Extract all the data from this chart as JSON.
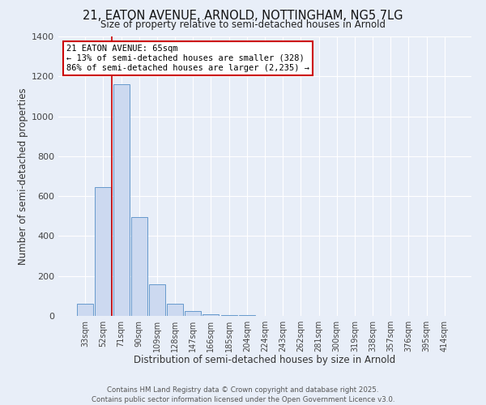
{
  "title_line1": "21, EATON AVENUE, ARNOLD, NOTTINGHAM, NG5 7LG",
  "title_line2": "Size of property relative to semi-detached houses in Arnold",
  "xlabel": "Distribution of semi-detached houses by size in Arnold",
  "ylabel": "Number of semi-detached properties",
  "bar_labels": [
    "33sqm",
    "52sqm",
    "71sqm",
    "90sqm",
    "109sqm",
    "128sqm",
    "147sqm",
    "166sqm",
    "185sqm",
    "204sqm",
    "224sqm",
    "243sqm",
    "262sqm",
    "281sqm",
    "300sqm",
    "319sqm",
    "338sqm",
    "357sqm",
    "376sqm",
    "395sqm",
    "414sqm"
  ],
  "bar_values": [
    60,
    645,
    1160,
    495,
    160,
    60,
    25,
    10,
    5,
    3,
    0,
    0,
    0,
    0,
    0,
    0,
    0,
    0,
    0,
    0,
    0
  ],
  "bar_color": "#ccd9f0",
  "bar_edge_color": "#6699cc",
  "background_color": "#e8eef8",
  "plot_bg_color": "#e8eef8",
  "grid_color": "#ffffff",
  "vline_color": "#cc0000",
  "vline_pos": 1.5,
  "annotation_title": "21 EATON AVENUE: 65sqm",
  "annotation_line2": "← 13% of semi-detached houses are smaller (328)",
  "annotation_line3": "86% of semi-detached houses are larger (2,235) →",
  "annotation_box_color": "#ffffff",
  "annotation_box_edge": "#cc0000",
  "ylim": [
    0,
    1400
  ],
  "yticks": [
    0,
    200,
    400,
    600,
    800,
    1000,
    1200,
    1400
  ],
  "footer_line1": "Contains HM Land Registry data © Crown copyright and database right 2025.",
  "footer_line2": "Contains public sector information licensed under the Open Government Licence v3.0."
}
